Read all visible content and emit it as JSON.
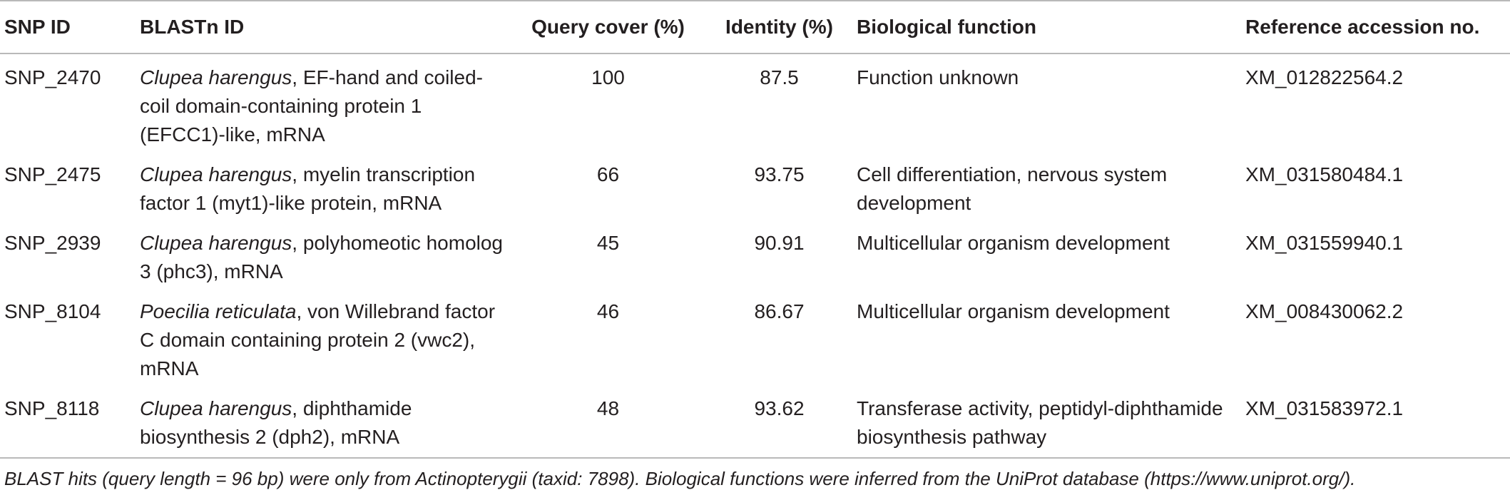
{
  "table": {
    "headers": {
      "snp_id": "SNP ID",
      "blastn_id": "BLASTn ID",
      "query_cover": "Query cover (%)",
      "identity": "Identity (%)",
      "biological_function": "Biological function",
      "reference_accession": "Reference accession no."
    },
    "rows": [
      {
        "snp_id": "SNP_2470",
        "species": "Clupea harengus",
        "description": ", EF-hand and coiled-coil domain-containing protein 1 (EFCC1)-like, mRNA",
        "query_cover": "100",
        "identity": "87.5",
        "biological_function": "Function unknown",
        "reference_accession": "XM_012822564.2"
      },
      {
        "snp_id": "SNP_2475",
        "species": "Clupea harengus",
        "description": ", myelin transcription factor 1 (myt1)-like protein, mRNA",
        "query_cover": "66",
        "identity": "93.75",
        "biological_function": "Cell differentiation, nervous system development",
        "reference_accession": "XM_031580484.1"
      },
      {
        "snp_id": "SNP_2939",
        "species": "Clupea harengus",
        "description": ", polyhomeotic homolog 3 (phc3), mRNA",
        "query_cover": "45",
        "identity": "90.91",
        "biological_function": "Multicellular organism development",
        "reference_accession": "XM_031559940.1"
      },
      {
        "snp_id": "SNP_8104",
        "species": "Poecilia reticulata",
        "description": ", von Willebrand factor C domain containing protein 2 (vwc2), mRNA",
        "query_cover": "46",
        "identity": "86.67",
        "biological_function": "Multicellular organism development",
        "reference_accession": "XM_008430062.2"
      },
      {
        "snp_id": "SNP_8118",
        "species": "Clupea harengus",
        "description": ", diphthamide biosynthesis 2 (dph2), mRNA",
        "query_cover": "48",
        "identity": "93.62",
        "biological_function": "Transferase activity, peptidyl-diphthamide biosynthesis pathway",
        "reference_accession": "XM_031583972.1"
      }
    ]
  },
  "footnote": "BLAST hits (query length = 96 bp) were only from Actinopterygii (taxid: 7898). Biological functions were inferred from the UniProt database (https://www.uniprot.org/)."
}
